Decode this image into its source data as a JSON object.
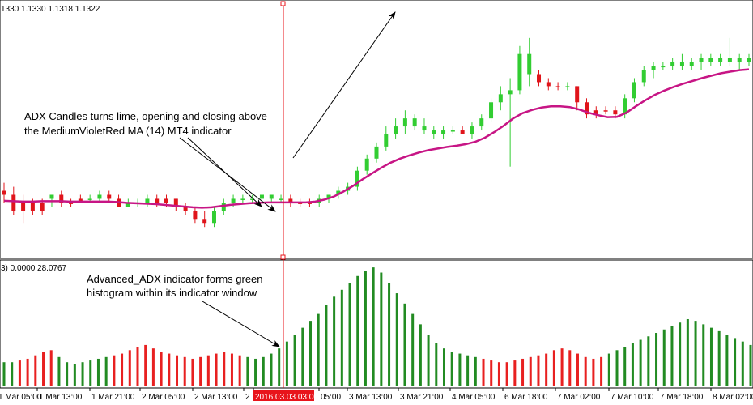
{
  "main_window": {
    "ohlc_header": "1330 1.1330 1.1318 1.1322"
  },
  "indicator_window": {
    "header": "3) 0.0000 28.0767"
  },
  "annotations": {
    "candles_note_line1": "ADX Candles turns lime, opening and closing above",
    "candles_note_line2": "the MediumVioletRed MA (14) MT4 indicator",
    "histogram_note_line1": "Advanced_ADX indicator forms green",
    "histogram_note_line2": "histogram within its indicator window"
  },
  "time_axis": {
    "labels": [
      "1 Mar 05:00",
      "1 Mar 13:00",
      "1 Mar 21:00",
      "2 Mar 05:00",
      "2 Mar 13:00",
      "2",
      "2016.03.03 03:00",
      "05:00",
      "3 Mar 13:00",
      "3 Mar 21:00",
      "4 Mar 05:00",
      "6 Mar 18:00",
      "7 Mar 02:00",
      "7 Mar 10:00",
      "7 Mar 18:00",
      "8 Mar 02:00"
    ],
    "highlight_index": 6,
    "highlight_color": "#e8141b"
  },
  "colors": {
    "bull": "#32cd32",
    "bear": "#e0141b",
    "bear_dark": "#8b0000",
    "bull_dark": "#1e6e1e",
    "ma": "#c71585",
    "hist_green": "#228b22",
    "hist_red": "#e82020",
    "cursor": "#e8141b"
  },
  "chart_data": [
    {
      "type": "candlestick",
      "description": "ADX candles with MediumVioletRed MA (14), price scale values not shown",
      "candles": [
        {
          "o": 1.132,
          "h": 1.134,
          "l": 1.129,
          "c": 1.131,
          "bull": false
        },
        {
          "o": 1.131,
          "h": 1.133,
          "l": 1.126,
          "c": 1.127,
          "bull": false
        },
        {
          "o": 1.127,
          "h": 1.131,
          "l": 1.124,
          "c": 1.129,
          "bull": false
        },
        {
          "o": 1.129,
          "h": 1.13,
          "l": 1.126,
          "c": 1.127,
          "bull": false
        },
        {
          "o": 1.127,
          "h": 1.13,
          "l": 1.126,
          "c": 1.129,
          "bull": false
        },
        {
          "o": 1.13,
          "h": 1.131,
          "l": 1.128,
          "c": 1.131,
          "bull": true
        },
        {
          "o": 1.131,
          "h": 1.132,
          "l": 1.128,
          "c": 1.129,
          "bull": false
        },
        {
          "o": 1.129,
          "h": 1.13,
          "l": 1.128,
          "c": 1.129,
          "bull": false
        },
        {
          "o": 1.129,
          "h": 1.131,
          "l": 1.129,
          "c": 1.13,
          "bull": false
        },
        {
          "o": 1.13,
          "h": 1.131,
          "l": 1.129,
          "c": 1.13,
          "bull": true
        },
        {
          "o": 1.13,
          "h": 1.132,
          "l": 1.129,
          "c": 1.131,
          "bull": true
        },
        {
          "o": 1.131,
          "h": 1.132,
          "l": 1.129,
          "c": 1.13,
          "bull": false
        },
        {
          "o": 1.13,
          "h": 1.131,
          "l": 1.128,
          "c": 1.128,
          "bull": false
        },
        {
          "o": 1.128,
          "h": 1.13,
          "l": 1.128,
          "c": 1.129,
          "bull": true
        },
        {
          "o": 1.129,
          "h": 1.13,
          "l": 1.128,
          "c": 1.129,
          "bull": true
        },
        {
          "o": 1.129,
          "h": 1.131,
          "l": 1.128,
          "c": 1.13,
          "bull": true
        },
        {
          "o": 1.13,
          "h": 1.131,
          "l": 1.128,
          "c": 1.129,
          "bull": false
        },
        {
          "o": 1.129,
          "h": 1.131,
          "l": 1.128,
          "c": 1.13,
          "bull": false
        },
        {
          "o": 1.13,
          "h": 1.13,
          "l": 1.127,
          "c": 1.128,
          "bull": false
        },
        {
          "o": 1.128,
          "h": 1.129,
          "l": 1.126,
          "c": 1.127,
          "bull": false
        },
        {
          "o": 1.127,
          "h": 1.128,
          "l": 1.124,
          "c": 1.125,
          "bull": false
        },
        {
          "o": 1.125,
          "h": 1.127,
          "l": 1.123,
          "c": 1.124,
          "bull": false
        },
        {
          "o": 1.124,
          "h": 1.128,
          "l": 1.123,
          "c": 1.127,
          "bull": true
        },
        {
          "o": 1.127,
          "h": 1.13,
          "l": 1.126,
          "c": 1.129,
          "bull": true
        },
        {
          "o": 1.129,
          "h": 1.131,
          "l": 1.128,
          "c": 1.13,
          "bull": true
        },
        {
          "o": 1.13,
          "h": 1.131,
          "l": 1.129,
          "c": 1.13,
          "bull": true
        },
        {
          "o": 1.13,
          "h": 1.131,
          "l": 1.129,
          "c": 1.13,
          "bull": true
        },
        {
          "o": 1.13,
          "h": 1.131,
          "l": 1.129,
          "c": 1.131,
          "bull": true
        },
        {
          "o": 1.131,
          "h": 1.131,
          "l": 1.129,
          "c": 1.13,
          "bull": true
        },
        {
          "o": 1.13,
          "h": 1.131,
          "l": 1.129,
          "c": 1.13,
          "bull": true
        },
        {
          "o": 1.13,
          "h": 1.131,
          "l": 1.128,
          "c": 1.129,
          "bull": false
        },
        {
          "o": 1.129,
          "h": 1.13,
          "l": 1.128,
          "c": 1.129,
          "bull": false
        },
        {
          "o": 1.129,
          "h": 1.13,
          "l": 1.128,
          "c": 1.129,
          "bull": false
        },
        {
          "o": 1.129,
          "h": 1.131,
          "l": 1.128,
          "c": 1.13,
          "bull": true
        },
        {
          "o": 1.13,
          "h": 1.131,
          "l": 1.129,
          "c": 1.131,
          "bull": true
        },
        {
          "o": 1.131,
          "h": 1.133,
          "l": 1.13,
          "c": 1.132,
          "bull": true
        },
        {
          "o": 1.132,
          "h": 1.134,
          "l": 1.131,
          "c": 1.133,
          "bull": true
        },
        {
          "o": 1.133,
          "h": 1.138,
          "l": 1.132,
          "c": 1.137,
          "bull": true
        },
        {
          "o": 1.137,
          "h": 1.141,
          "l": 1.136,
          "c": 1.14,
          "bull": true
        },
        {
          "o": 1.14,
          "h": 1.144,
          "l": 1.139,
          "c": 1.143,
          "bull": true
        },
        {
          "o": 1.143,
          "h": 1.148,
          "l": 1.142,
          "c": 1.146,
          "bull": true
        },
        {
          "o": 1.146,
          "h": 1.15,
          "l": 1.145,
          "c": 1.148,
          "bull": true
        },
        {
          "o": 1.148,
          "h": 1.152,
          "l": 1.146,
          "c": 1.15,
          "bull": true
        },
        {
          "o": 1.15,
          "h": 1.151,
          "l": 1.147,
          "c": 1.148,
          "bull": true
        },
        {
          "o": 1.148,
          "h": 1.15,
          "l": 1.146,
          "c": 1.147,
          "bull": true
        },
        {
          "o": 1.147,
          "h": 1.148,
          "l": 1.145,
          "c": 1.146,
          "bull": true
        },
        {
          "o": 1.146,
          "h": 1.148,
          "l": 1.145,
          "c": 1.147,
          "bull": true
        },
        {
          "o": 1.147,
          "h": 1.148,
          "l": 1.146,
          "c": 1.147,
          "bull": true
        },
        {
          "o": 1.147,
          "h": 1.148,
          "l": 1.146,
          "c": 1.146,
          "bull": false
        },
        {
          "o": 1.146,
          "h": 1.149,
          "l": 1.145,
          "c": 1.148,
          "bull": true
        },
        {
          "o": 1.148,
          "h": 1.151,
          "l": 1.147,
          "c": 1.15,
          "bull": true
        },
        {
          "o": 1.15,
          "h": 1.155,
          "l": 1.149,
          "c": 1.154,
          "bull": true
        },
        {
          "o": 1.154,
          "h": 1.158,
          "l": 1.152,
          "c": 1.156,
          "bull": true
        },
        {
          "o": 1.156,
          "h": 1.16,
          "l": 1.138,
          "c": 1.157,
          "bull": true
        },
        {
          "o": 1.157,
          "h": 1.168,
          "l": 1.156,
          "c": 1.166,
          "bull": true
        },
        {
          "o": 1.166,
          "h": 1.17,
          "l": 1.158,
          "c": 1.161,
          "bull": true
        },
        {
          "o": 1.161,
          "h": 1.162,
          "l": 1.158,
          "c": 1.159,
          "bull": false
        },
        {
          "o": 1.159,
          "h": 1.16,
          "l": 1.157,
          "c": 1.158,
          "bull": false
        },
        {
          "o": 1.158,
          "h": 1.159,
          "l": 1.157,
          "c": 1.158,
          "bull": false
        },
        {
          "o": 1.158,
          "h": 1.159,
          "l": 1.157,
          "c": 1.158,
          "bull": true
        },
        {
          "o": 1.158,
          "h": 1.158,
          "l": 1.152,
          "c": 1.154,
          "bull": false
        },
        {
          "o": 1.154,
          "h": 1.155,
          "l": 1.15,
          "c": 1.151,
          "bull": false
        },
        {
          "o": 1.151,
          "h": 1.153,
          "l": 1.15,
          "c": 1.152,
          "bull": false
        },
        {
          "o": 1.152,
          "h": 1.153,
          "l": 1.151,
          "c": 1.152,
          "bull": false
        },
        {
          "o": 1.152,
          "h": 1.153,
          "l": 1.15,
          "c": 1.151,
          "bull": false
        },
        {
          "o": 1.151,
          "h": 1.156,
          "l": 1.15,
          "c": 1.155,
          "bull": true
        },
        {
          "o": 1.155,
          "h": 1.16,
          "l": 1.154,
          "c": 1.159,
          "bull": true
        },
        {
          "o": 1.159,
          "h": 1.163,
          "l": 1.158,
          "c": 1.162,
          "bull": true
        },
        {
          "o": 1.162,
          "h": 1.164,
          "l": 1.16,
          "c": 1.163,
          "bull": true
        },
        {
          "o": 1.163,
          "h": 1.164,
          "l": 1.162,
          "c": 1.163,
          "bull": true
        },
        {
          "o": 1.163,
          "h": 1.165,
          "l": 1.162,
          "c": 1.164,
          "bull": true
        },
        {
          "o": 1.164,
          "h": 1.166,
          "l": 1.162,
          "c": 1.163,
          "bull": true
        },
        {
          "o": 1.163,
          "h": 1.165,
          "l": 1.162,
          "c": 1.164,
          "bull": true
        },
        {
          "o": 1.164,
          "h": 1.166,
          "l": 1.162,
          "c": 1.165,
          "bull": true
        },
        {
          "o": 1.165,
          "h": 1.166,
          "l": 1.163,
          "c": 1.164,
          "bull": true
        },
        {
          "o": 1.164,
          "h": 1.166,
          "l": 1.163,
          "c": 1.165,
          "bull": true
        },
        {
          "o": 1.165,
          "h": 1.17,
          "l": 1.163,
          "c": 1.164,
          "bull": true
        },
        {
          "o": 1.164,
          "h": 1.166,
          "l": 1.162,
          "c": 1.165,
          "bull": true
        },
        {
          "o": 1.165,
          "h": 1.166,
          "l": 1.163,
          "c": 1.164,
          "bull": true
        }
      ],
      "ma": [
        1.1295,
        1.1294,
        1.1293,
        1.1293,
        1.1294,
        1.1294,
        1.1294,
        1.1293,
        1.1293,
        1.1293,
        1.1293,
        1.1293,
        1.1292,
        1.129,
        1.1289,
        1.1288,
        1.1287,
        1.1285,
        1.1283,
        1.1281,
        1.1279,
        1.1278,
        1.1279,
        1.1282,
        1.1285,
        1.1287,
        1.1289,
        1.129,
        1.1291,
        1.1291,
        1.1291,
        1.1291,
        1.1291,
        1.1293,
        1.1298,
        1.1306,
        1.1318,
        1.1332,
        1.1348,
        1.1363,
        1.1377,
        1.139,
        1.14,
        1.1408,
        1.1415,
        1.1421,
        1.1425,
        1.1429,
        1.1432,
        1.1436,
        1.1442,
        1.1452,
        1.1466,
        1.1482,
        1.15,
        1.1513,
        1.1521,
        1.1527,
        1.153,
        1.153,
        1.1528,
        1.1522,
        1.1514,
        1.1508,
        1.1503,
        1.1504,
        1.1514,
        1.153,
        1.1545,
        1.1558,
        1.1569,
        1.1578,
        1.1586,
        1.1593,
        1.16,
        1.1606,
        1.1612,
        1.1616,
        1.162,
        1.1622
      ],
      "ma_name": "MA (14)"
    },
    {
      "type": "bar",
      "description": "Advanced_ADX histogram, colored green or red per bar",
      "values": [
        14,
        14,
        15,
        16,
        18,
        20,
        21,
        17,
        14,
        13,
        14,
        15,
        16,
        17,
        18,
        19,
        21,
        23,
        24,
        22,
        20,
        19,
        18,
        17,
        16,
        17,
        18,
        19,
        20,
        19,
        18,
        17,
        16,
        17,
        19,
        22,
        26,
        30,
        34,
        38,
        42,
        47,
        52,
        56,
        60,
        64,
        67,
        69,
        66,
        60,
        54,
        48,
        42,
        36,
        30,
        25,
        22,
        20,
        19,
        18,
        17,
        16,
        15,
        14,
        14,
        15,
        16,
        17,
        18,
        19,
        21,
        22,
        21,
        19,
        17,
        16,
        17,
        19,
        21,
        23,
        25,
        27,
        29,
        31,
        33,
        35,
        37,
        39,
        38,
        36,
        34,
        32,
        30,
        28,
        26,
        24
      ],
      "bull": [
        true,
        true,
        false,
        false,
        false,
        false,
        false,
        true,
        true,
        true,
        true,
        true,
        true,
        true,
        false,
        false,
        false,
        false,
        false,
        false,
        false,
        false,
        false,
        false,
        false,
        false,
        false,
        false,
        false,
        false,
        false,
        true,
        true,
        true,
        true,
        true,
        true,
        true,
        true,
        true,
        true,
        true,
        true,
        true,
        true,
        true,
        true,
        true,
        true,
        true,
        true,
        true,
        true,
        true,
        true,
        true,
        true,
        true,
        true,
        true,
        true,
        false,
        false,
        false,
        false,
        false,
        false,
        false,
        false,
        false,
        false,
        false,
        false,
        false,
        false,
        false,
        false,
        true,
        true,
        true,
        true,
        true,
        true,
        true,
        true,
        true,
        true,
        true,
        true,
        true,
        true,
        true,
        true,
        true,
        true,
        true
      ],
      "ylim": [
        0,
        70
      ]
    }
  ]
}
